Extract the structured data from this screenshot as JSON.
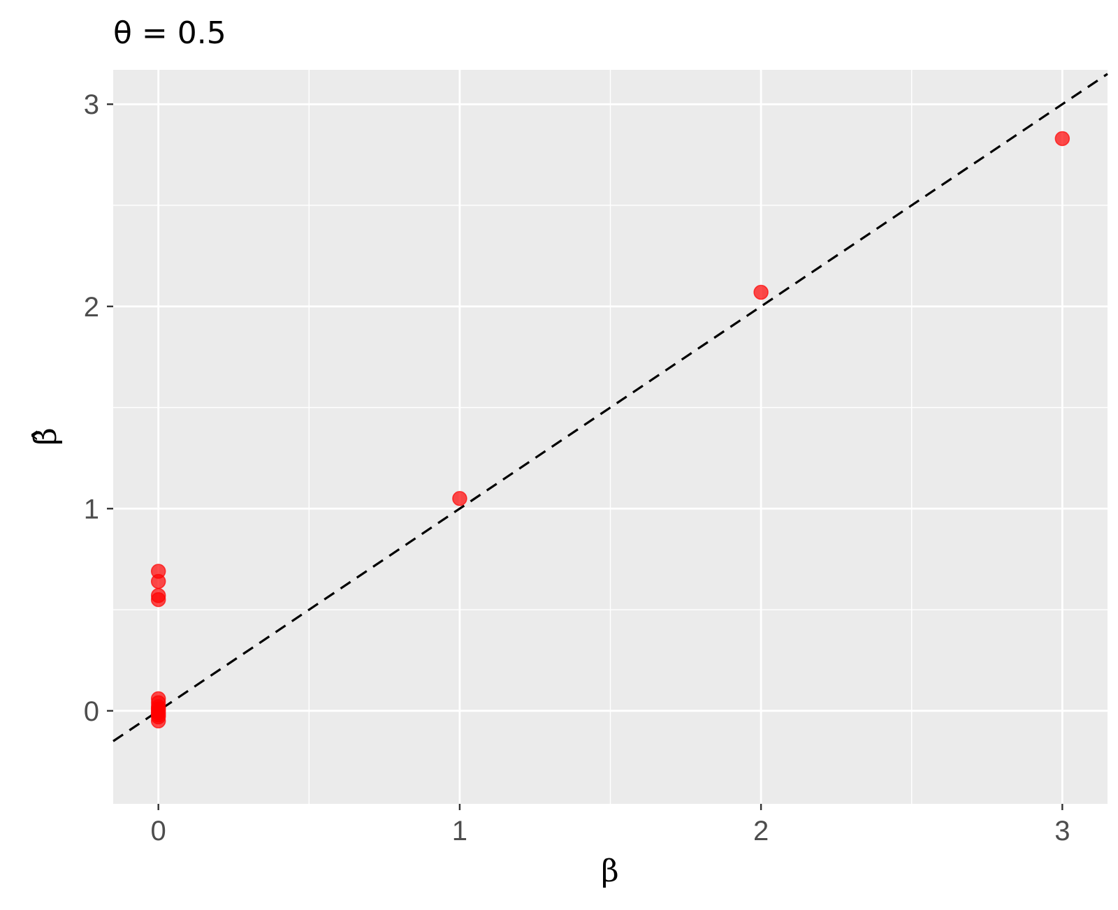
{
  "chart_data": {
    "type": "scatter",
    "title": "θ = 0.5",
    "xlabel": "β",
    "ylabel": "β̂",
    "xlim": [
      -0.15,
      3.15
    ],
    "ylim": [
      -0.46,
      3.17
    ],
    "x_ticks": [
      0,
      1,
      2,
      3
    ],
    "x_tick_labels": [
      "0",
      "1",
      "2",
      "3"
    ],
    "x_minor_ticks": [
      0.5,
      1.5,
      2.5
    ],
    "y_ticks": [
      0,
      1,
      2,
      3
    ],
    "y_tick_labels": [
      "0",
      "1",
      "2",
      "3"
    ],
    "y_minor_ticks": [
      -0.5,
      0.5,
      1.5,
      2.5
    ],
    "grid": true,
    "panel_background": "#ebebeb",
    "grid_color": "#ffffff",
    "point_color": "#ff0000",
    "point_opacity": 0.7,
    "reference_line": {
      "slope": 1,
      "intercept": 0,
      "style": "dashed",
      "color": "#000000"
    },
    "points": [
      {
        "x": 0,
        "y": 0.69
      },
      {
        "x": 0,
        "y": 0.64
      },
      {
        "x": 0,
        "y": 0.57
      },
      {
        "x": 0,
        "y": 0.55
      },
      {
        "x": 0,
        "y": 0.06
      },
      {
        "x": 0,
        "y": 0.04
      },
      {
        "x": 0,
        "y": 0.02
      },
      {
        "x": 0,
        "y": 0.01
      },
      {
        "x": 0,
        "y": 0.0
      },
      {
        "x": 0,
        "y": -0.01
      },
      {
        "x": 0,
        "y": -0.02
      },
      {
        "x": 0,
        "y": -0.03
      },
      {
        "x": 0,
        "y": -0.05
      },
      {
        "x": 1,
        "y": 1.05
      },
      {
        "x": 2,
        "y": 2.07
      },
      {
        "x": 3,
        "y": 2.83
      }
    ]
  }
}
